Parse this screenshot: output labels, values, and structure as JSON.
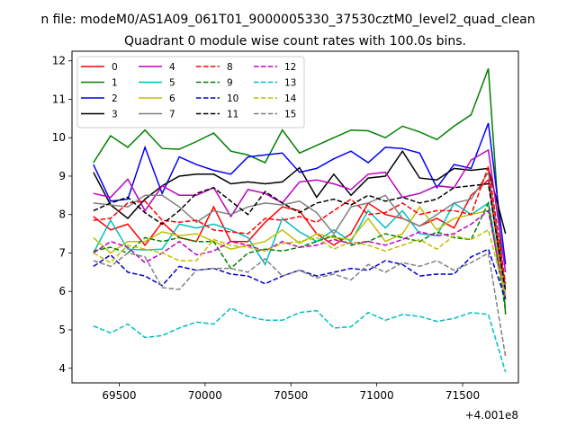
{
  "figure": {
    "suptitle": "n file: modeM0/AS1A09_061T01_9000005330_37530cztM0_level2_quad_clean",
    "offset_label": "+4.001e8"
  },
  "chart_data": {
    "type": "line",
    "title": "Quadrant 0 module wise count rates with 100.0s bins.",
    "xlabel": "",
    "ylabel": "",
    "x_offset": 400100000,
    "xlim": [
      69225,
      71825
    ],
    "ylim": [
      3.62,
      12.25
    ],
    "xticks": [
      69500,
      70000,
      70500,
      71000,
      71500
    ],
    "xtick_labels": [
      "69500",
      "70000",
      "70500",
      "71000",
      "71500"
    ],
    "yticks": [
      4,
      5,
      6,
      7,
      8,
      9,
      10,
      11,
      12
    ],
    "ytick_labels": [
      "4",
      "5",
      "6",
      "7",
      "8",
      "9",
      "10",
      "11",
      "12"
    ],
    "grid": false,
    "legend_position": "top-left",
    "legend_columns": 4,
    "x": [
      69350,
      69450,
      69550,
      69650,
      69750,
      69850,
      69950,
      70050,
      70150,
      70250,
      70350,
      70450,
      70550,
      70650,
      70750,
      70850,
      70950,
      71050,
      71150,
      71250,
      71350,
      71450,
      71550,
      71650,
      71750
    ],
    "series": [
      {
        "name": "0",
        "color": "#ff0000",
        "dash": "solid",
        "values": [
          7.95,
          7.6,
          7.75,
          7.2,
          7.8,
          7.4,
          7.3,
          8.2,
          7.3,
          7.3,
          7.8,
          8.2,
          8.1,
          7.5,
          7.2,
          7.5,
          8.3,
          8.0,
          7.9,
          7.7,
          7.9,
          7.65,
          8.5,
          8.9,
          5.8
        ]
      },
      {
        "name": "1",
        "color": "#008000",
        "dash": "solid",
        "values": [
          9.35,
          10.05,
          9.75,
          10.2,
          9.72,
          9.7,
          9.9,
          10.12,
          9.65,
          9.55,
          9.35,
          10.2,
          9.6,
          9.8,
          10.0,
          10.2,
          10.18,
          10.0,
          10.3,
          10.15,
          9.95,
          10.3,
          10.6,
          11.8,
          5.4
        ]
      },
      {
        "name": "2",
        "color": "#0000ff",
        "dash": "solid",
        "values": [
          9.3,
          8.35,
          8.4,
          9.75,
          8.55,
          9.5,
          9.3,
          9.15,
          9.05,
          9.5,
          9.55,
          9.6,
          9.1,
          9.2,
          9.45,
          9.65,
          9.35,
          9.75,
          9.72,
          9.6,
          8.7,
          9.3,
          9.2,
          10.38,
          6.7
        ]
      },
      {
        "name": "3",
        "color": "#000000",
        "dash": "solid",
        "values": [
          9.1,
          8.25,
          7.9,
          8.4,
          8.75,
          9.0,
          9.05,
          9.05,
          8.8,
          8.85,
          8.8,
          8.85,
          9.22,
          8.45,
          9.05,
          8.5,
          8.95,
          9.0,
          9.65,
          8.95,
          8.9,
          9.2,
          9.15,
          9.2,
          7.5
        ]
      },
      {
        "name": "4",
        "color": "#bf00bf",
        "dash": "solid",
        "values": [
          8.55,
          8.45,
          8.92,
          8.1,
          8.75,
          8.5,
          8.5,
          8.7,
          7.95,
          8.65,
          8.55,
          8.3,
          8.85,
          8.9,
          8.8,
          8.65,
          9.05,
          9.1,
          8.45,
          8.55,
          8.75,
          8.7,
          9.42,
          9.68,
          6.5
        ]
      },
      {
        "name": "5",
        "color": "#00bfbf",
        "dash": "solid",
        "values": [
          7.0,
          7.85,
          7.1,
          7.08,
          7.1,
          7.75,
          7.65,
          7.75,
          7.6,
          7.4,
          6.7,
          7.9,
          7.55,
          7.3,
          7.6,
          7.3,
          8.1,
          7.65,
          8.1,
          7.5,
          7.45,
          8.3,
          8.0,
          8.3,
          5.9
        ]
      },
      {
        "name": "6",
        "color": "#bfbf00",
        "dash": "solid",
        "values": [
          7.4,
          7.0,
          7.3,
          7.3,
          7.55,
          7.45,
          7.5,
          7.3,
          7.1,
          7.2,
          7.3,
          7.6,
          7.25,
          7.5,
          7.4,
          7.35,
          7.9,
          7.3,
          7.5,
          8.2,
          7.6,
          7.9,
          8.0,
          8.1,
          6.0
        ]
      },
      {
        "name": "7",
        "color": "#808080",
        "dash": "solid",
        "values": [
          8.3,
          8.25,
          8.2,
          8.5,
          8.5,
          8.2,
          7.8,
          8.1,
          8.0,
          8.2,
          8.3,
          8.25,
          8.35,
          8.05,
          7.5,
          8.2,
          8.3,
          8.5,
          7.9,
          7.7,
          8.0,
          8.3,
          8.4,
          9.1,
          6.1
        ]
      },
      {
        "name": "8",
        "color": "#ff0000",
        "dash": "dashed",
        "values": [
          7.85,
          7.9,
          8.3,
          8.35,
          7.85,
          7.8,
          7.85,
          7.6,
          7.55,
          7.5,
          7.9,
          7.85,
          7.95,
          7.8,
          8.1,
          8.4,
          8.0,
          8.05,
          8.3,
          8.0,
          8.1,
          8.1,
          8.0,
          9.25,
          6.2
        ]
      },
      {
        "name": "9",
        "color": "#008000",
        "dash": "dashed",
        "values": [
          7.05,
          7.15,
          7.0,
          7.4,
          7.3,
          7.4,
          7.3,
          7.3,
          6.6,
          7.0,
          7.1,
          7.05,
          7.15,
          7.3,
          7.45,
          7.2,
          7.3,
          7.5,
          7.4,
          7.3,
          7.55,
          7.4,
          7.35,
          8.3,
          5.5
        ]
      },
      {
        "name": "10",
        "color": "#0000cc",
        "dash": "dashed",
        "values": [
          6.65,
          6.95,
          6.5,
          6.4,
          6.15,
          6.65,
          6.55,
          6.6,
          6.45,
          6.4,
          6.2,
          6.4,
          6.55,
          6.4,
          6.5,
          6.6,
          6.55,
          6.8,
          6.7,
          6.4,
          6.45,
          6.45,
          6.9,
          7.1,
          5.8
        ]
      },
      {
        "name": "11",
        "color": "#000000",
        "dash": "dashed",
        "values": [
          8.1,
          8.3,
          8.45,
          8.05,
          7.75,
          8.1,
          8.55,
          8.7,
          8.35,
          8.0,
          8.6,
          8.3,
          8.05,
          8.3,
          8.4,
          8.25,
          8.5,
          8.35,
          8.45,
          8.3,
          8.4,
          8.7,
          8.75,
          8.8,
          6.0
        ]
      },
      {
        "name": "12",
        "color": "#bf00bf",
        "dash": "dashed",
        "values": [
          7.0,
          7.3,
          7.15,
          6.75,
          7.0,
          7.3,
          6.95,
          7.05,
          7.3,
          7.2,
          7.05,
          7.3,
          7.15,
          7.2,
          7.35,
          7.25,
          7.3,
          7.2,
          7.35,
          7.55,
          7.45,
          7.5,
          7.75,
          8.1,
          5.8
        ]
      },
      {
        "name": "13",
        "color": "#00bfbf",
        "dash": "dashed",
        "values": [
          5.1,
          4.92,
          5.15,
          4.8,
          4.85,
          5.05,
          5.2,
          5.15,
          5.57,
          5.35,
          5.25,
          5.25,
          5.45,
          5.5,
          5.05,
          5.08,
          5.45,
          5.25,
          5.4,
          5.35,
          5.22,
          5.3,
          5.45,
          5.4,
          3.9
        ]
      },
      {
        "name": "14",
        "color": "#bfbf00",
        "dash": "dashed",
        "values": [
          7.0,
          6.75,
          7.2,
          7.1,
          7.0,
          6.8,
          6.8,
          7.35,
          7.2,
          7.15,
          7.05,
          7.25,
          7.3,
          7.4,
          7.1,
          7.3,
          7.2,
          7.05,
          7.2,
          7.35,
          7.1,
          7.45,
          7.35,
          7.6,
          5.9
        ]
      },
      {
        "name": "15",
        "color": "#808080",
        "dash": "dashed",
        "values": [
          6.8,
          6.65,
          7.0,
          6.9,
          6.1,
          6.05,
          6.55,
          6.6,
          6.6,
          6.5,
          6.85,
          6.4,
          6.55,
          6.35,
          6.45,
          6.3,
          6.7,
          6.5,
          6.75,
          6.65,
          6.8,
          6.55,
          6.75,
          7.0,
          4.3
        ]
      }
    ]
  }
}
